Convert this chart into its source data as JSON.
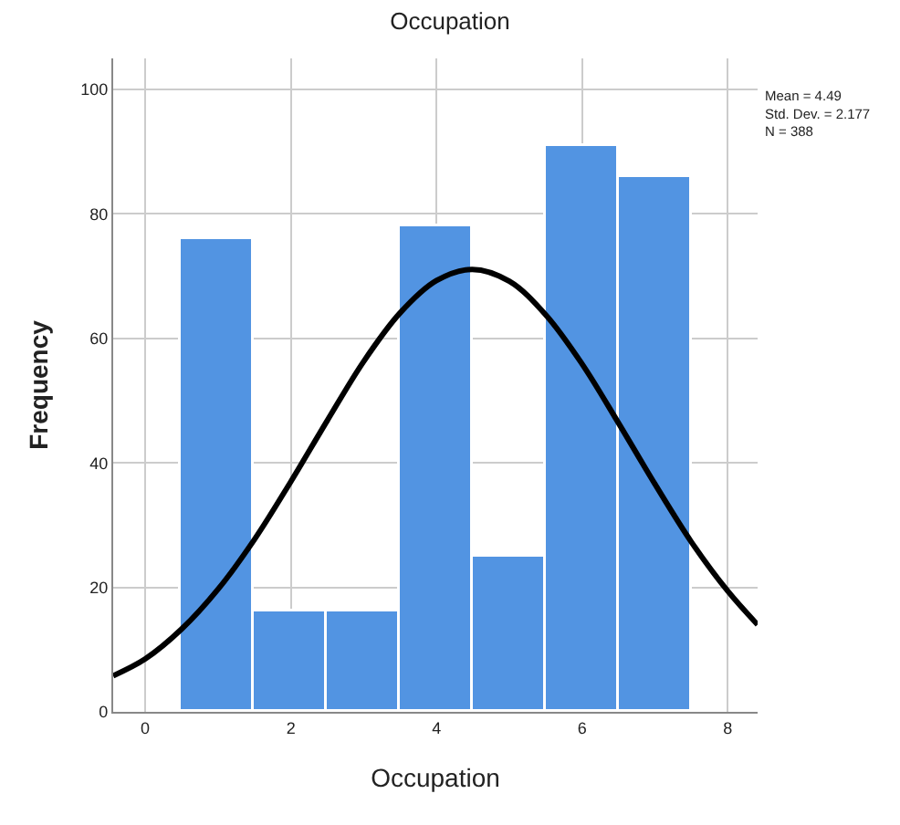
{
  "chart_data": {
    "type": "histogram",
    "title": "Occupation",
    "xlabel": "Occupation",
    "ylabel": "Frequency",
    "series": [
      {
        "color": "#5294e2",
        "bins": [
          0.5,
          1.5,
          2.5,
          3.5,
          4.5,
          5.5,
          6.5,
          7.5
        ],
        "values": [
          76,
          16,
          16,
          78,
          25,
          91,
          86
        ]
      },
      {
        "type": "line",
        "color": "#000000",
        "x": [
          -0.44,
          0,
          0.5,
          1,
          1.5,
          2,
          2.5,
          3,
          3.5,
          4,
          4.49,
          5,
          5.5,
          6,
          6.5,
          7,
          7.5,
          8,
          8.41
        ],
        "values": [
          5.8,
          8.5,
          13.3,
          19.7,
          27.7,
          37,
          46.8,
          56.3,
          64.1,
          69.3,
          71.1,
          69.2,
          63.8,
          55.9,
          46.4,
          36.6,
          27.3,
          19.4,
          14
        ]
      }
    ],
    "xlim": [
      -0.44,
      8.41
    ],
    "xticks": [
      0,
      2,
      4,
      6,
      8
    ],
    "ylim": [
      0,
      105
    ],
    "yticks": [
      0,
      20,
      40,
      60,
      80,
      100
    ],
    "grid": true,
    "marker": "none",
    "line_style": "solid",
    "annotations": [
      "Mean = 4.49",
      "Std. Dev. = 2.177",
      "N = 388"
    ]
  }
}
